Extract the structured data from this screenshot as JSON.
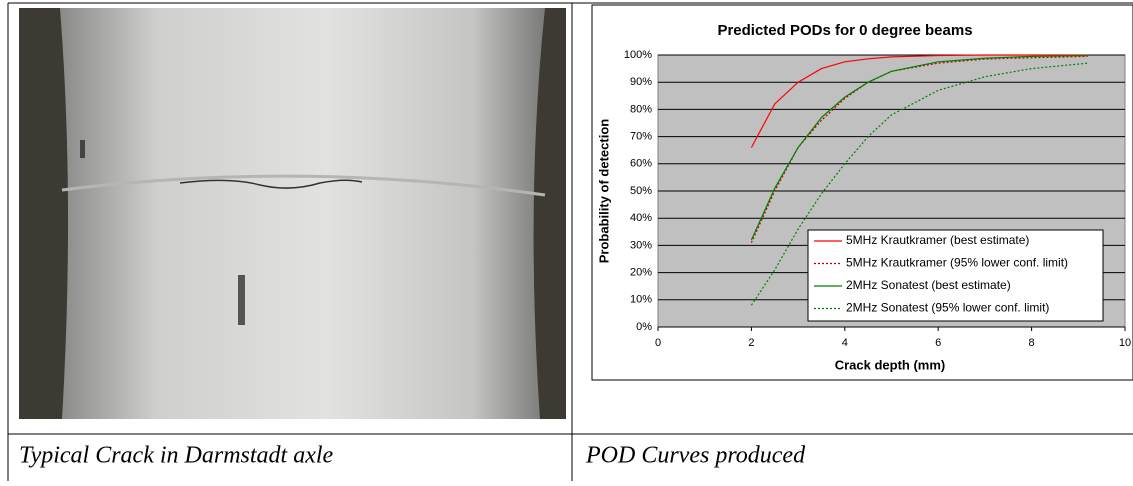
{
  "chart_data": {
    "type": "line",
    "title": "Predicted PODs for 0 degree beams",
    "x_label": "Crack depth (mm)",
    "y_label": "Probability of detection",
    "x": [
      2,
      2.5,
      3,
      3.5,
      4,
      4.5,
      5,
      6,
      7,
      8,
      9.2
    ],
    "series": [
      {
        "name": "5MHz Krautkramer (best estimate)",
        "color": "#ff0000",
        "dash": "solid",
        "values": [
          66,
          82,
          90,
          95,
          97.5,
          98.6,
          99.3,
          99.8,
          100,
          100,
          100
        ]
      },
      {
        "name": "5MHz Krautkramer (95% lower conf. limit)",
        "color": "#c00000",
        "dash": "dotted",
        "values": [
          31,
          50,
          66,
          76,
          84,
          90,
          94,
          97,
          98.5,
          99,
          99.5
        ]
      },
      {
        "name": "2MHz Sonatest (best estimate)",
        "color": "#008000",
        "dash": "solid",
        "values": [
          32,
          51,
          66,
          77,
          84.5,
          90,
          94,
          97.5,
          98.8,
          99.5,
          99.8
        ]
      },
      {
        "name": "2MHz Sonatest (95% lower conf. limit)",
        "color": "#008000",
        "dash": "dotted",
        "values": [
          8,
          21,
          36,
          49,
          60,
          70,
          78,
          87,
          92,
          95,
          97
        ]
      }
    ],
    "xlim": [
      0,
      10
    ],
    "xticks": [
      0,
      2,
      4,
      6,
      8,
      10
    ],
    "ylim": [
      0,
      100
    ],
    "yticks": [
      {
        "value": 0,
        "label": "0%"
      },
      {
        "value": 10,
        "label": "10%"
      },
      {
        "value": 20,
        "label": "20%"
      },
      {
        "value": 30,
        "label": "30%"
      },
      {
        "value": 40,
        "label": "40%"
      },
      {
        "value": 50,
        "label": "50%"
      },
      {
        "value": 60,
        "label": "60%"
      },
      {
        "value": 70,
        "label": "70%"
      },
      {
        "value": 80,
        "label": "80%"
      },
      {
        "value": 90,
        "label": "90%"
      },
      {
        "value": 100,
        "label": "100%"
      }
    ],
    "grid": true,
    "legend": "lower right",
    "plot_background": "#c0c0c0"
  },
  "table": {
    "captions": [
      "Typical Crack in Darmstadt axle",
      "POD Curves produced"
    ]
  }
}
